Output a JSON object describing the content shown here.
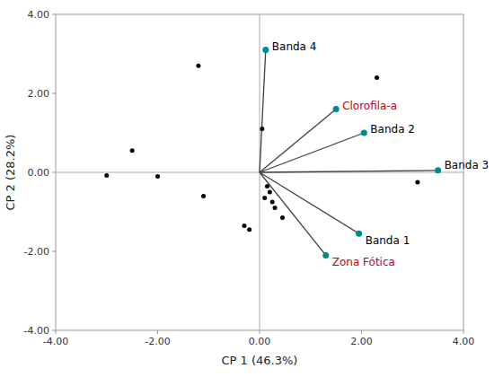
{
  "chart_data": {
    "type": "biplot",
    "xlabel": "CP 1 (46.3%)",
    "ylabel": "CP 2 (28.2%)",
    "xlim": [
      -4.0,
      4.0
    ],
    "ylim": [
      -4.0,
      4.0
    ],
    "xticks": [
      {
        "value": -4.0,
        "label": "-4.00"
      },
      {
        "value": -2.0,
        "label": "-2.00"
      },
      {
        "value": 0.0,
        "label": "0.00"
      },
      {
        "value": 2.0,
        "label": "2.00"
      },
      {
        "value": 4.0,
        "label": "4.00"
      }
    ],
    "yticks": [
      {
        "value": -4.0,
        "label": "-4.00"
      },
      {
        "value": -2.0,
        "label": "-2.00"
      },
      {
        "value": 0.0,
        "label": "0.00"
      },
      {
        "value": 2.0,
        "label": "2.00"
      },
      {
        "value": 4.0,
        "label": "4.00"
      }
    ],
    "grid": false,
    "points": {
      "x": [
        -3.0,
        -2.5,
        -2.0,
        -1.2,
        -1.1,
        0.05,
        0.15,
        0.2,
        0.1,
        0.25,
        0.3,
        -0.3,
        -0.2,
        0.45,
        3.1,
        2.3
      ],
      "y": [
        -0.08,
        0.55,
        -0.1,
        2.7,
        -0.6,
        1.1,
        -0.35,
        -0.5,
        -0.65,
        -0.75,
        -0.9,
        -1.35,
        -1.45,
        -1.15,
        -0.25,
        2.4
      ],
      "color": "#000000",
      "marker": "circle"
    },
    "vectors": {
      "x": [
        0.12,
        1.5,
        2.05,
        3.5,
        1.95,
        1.3
      ],
      "y": [
        3.1,
        1.6,
        1.0,
        0.05,
        -1.55,
        -2.1
      ],
      "labels": [
        "Banda 4",
        "Clorofila-a",
        "Banda 2",
        "Banda 3",
        "Banda 1",
        "Zona Fótica"
      ],
      "label_colors": [
        "#000000",
        "#cc0000",
        "#000000",
        "#000000",
        "#000000",
        "#cc0000"
      ],
      "color": "#404040",
      "endpoint_color": "#008B8B"
    }
  }
}
